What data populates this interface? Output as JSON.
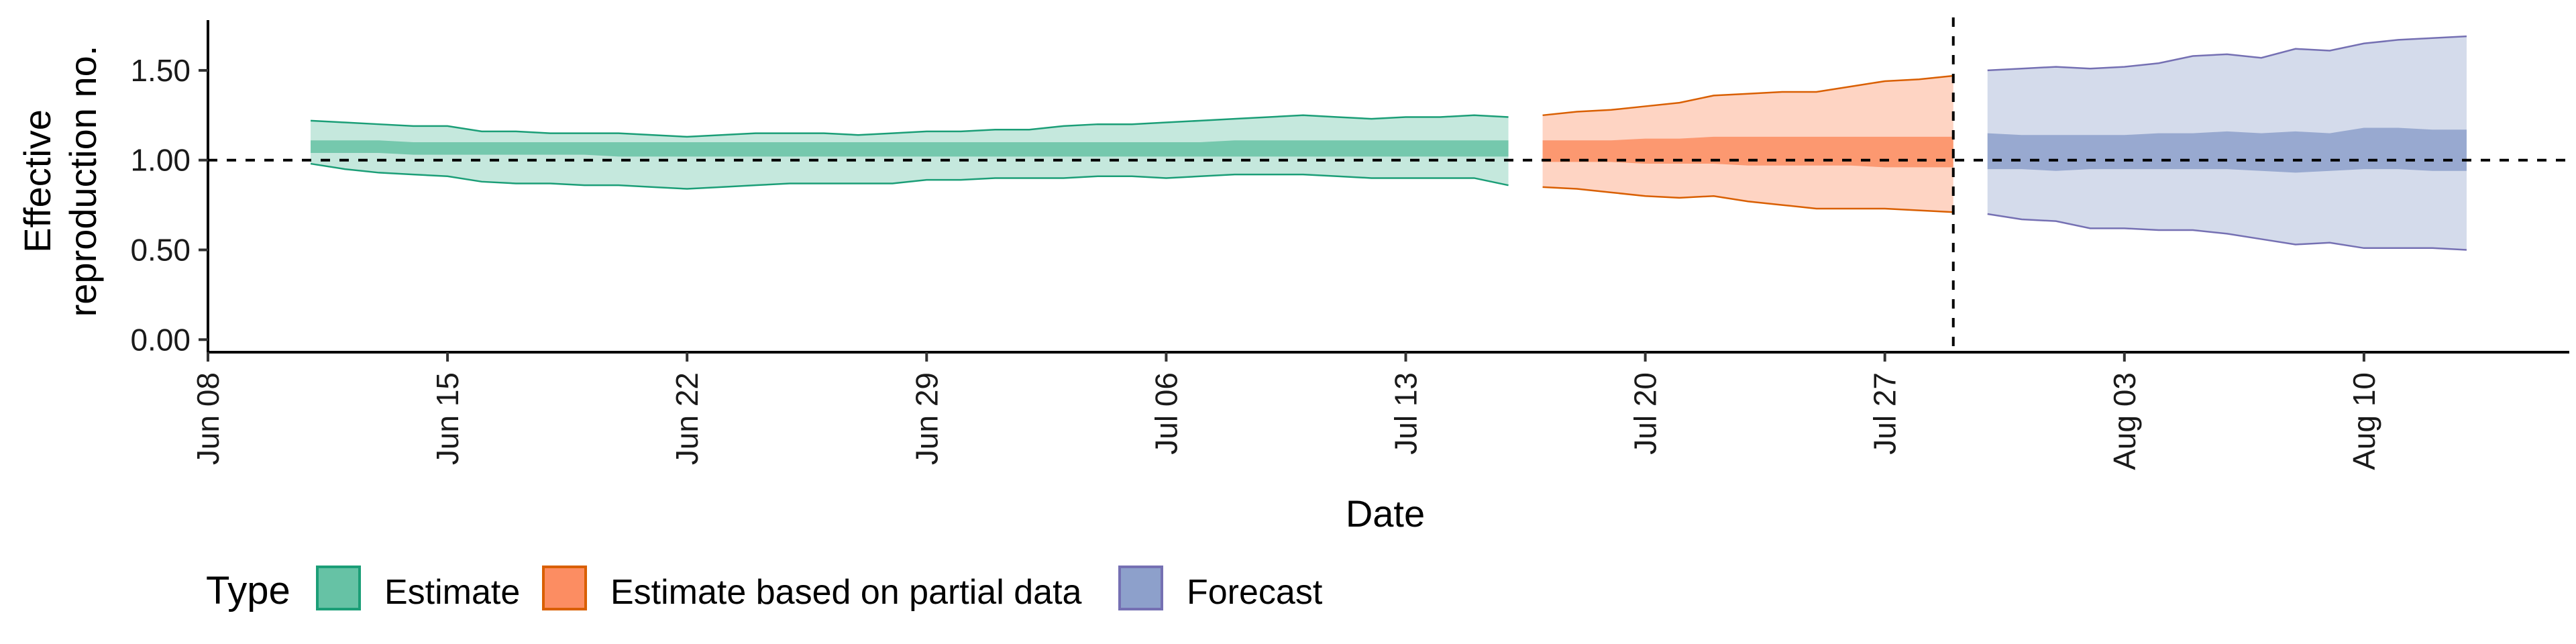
{
  "chart_data": {
    "type": "area",
    "xlabel": "Date",
    "ylabel_lines": [
      "Effective",
      "reproduction no."
    ],
    "y_ticks": [
      0.0,
      0.5,
      1.0,
      1.5
    ],
    "y_tick_labels": [
      "0.00",
      "0.50",
      "1.00",
      "1.50"
    ],
    "ylim": [
      -0.07,
      1.78
    ],
    "xlim": [
      "2020-06-08",
      "2020-08-16"
    ],
    "x_ticks": [
      "2020-06-08",
      "2020-06-15",
      "2020-06-22",
      "2020-06-29",
      "2020-07-06",
      "2020-07-13",
      "2020-07-20",
      "2020-07-27",
      "2020-08-03",
      "2020-08-10"
    ],
    "x_tick_labels": [
      "Jun 08",
      "Jun 15",
      "Jun 22",
      "Jun 29",
      "Jul 06",
      "Jul 13",
      "Jul 20",
      "Jul 27",
      "Aug 03",
      "Aug 10"
    ],
    "reference_line_y": 1.0,
    "reference_line_x": "2020-07-29",
    "grid": false,
    "legend": {
      "title": "Type",
      "position": "bottom",
      "entries": [
        "Estimate",
        "Estimate based on partial data",
        "Forecast"
      ]
    },
    "series": [
      {
        "name": "Estimate",
        "fill": "#66c2a5",
        "line": "#1b9e77",
        "x": [
          "2020-06-11",
          "2020-06-12",
          "2020-06-13",
          "2020-06-14",
          "2020-06-15",
          "2020-06-16",
          "2020-06-17",
          "2020-06-18",
          "2020-06-19",
          "2020-06-20",
          "2020-06-21",
          "2020-06-22",
          "2020-06-23",
          "2020-06-24",
          "2020-06-25",
          "2020-06-26",
          "2020-06-27",
          "2020-06-28",
          "2020-06-29",
          "2020-06-30",
          "2020-07-01",
          "2020-07-02",
          "2020-07-03",
          "2020-07-04",
          "2020-07-05",
          "2020-07-06",
          "2020-07-07",
          "2020-07-08",
          "2020-07-09",
          "2020-07-10",
          "2020-07-11",
          "2020-07-12",
          "2020-07-13",
          "2020-07-14",
          "2020-07-15",
          "2020-07-16"
        ],
        "lower90": [
          0.98,
          0.95,
          0.93,
          0.92,
          0.91,
          0.88,
          0.87,
          0.87,
          0.86,
          0.86,
          0.85,
          0.84,
          0.85,
          0.86,
          0.87,
          0.87,
          0.87,
          0.87,
          0.89,
          0.89,
          0.9,
          0.9,
          0.9,
          0.91,
          0.91,
          0.9,
          0.91,
          0.92,
          0.92,
          0.92,
          0.91,
          0.9,
          0.9,
          0.9,
          0.9,
          0.86
        ],
        "upper90": [
          1.22,
          1.21,
          1.2,
          1.19,
          1.19,
          1.16,
          1.16,
          1.15,
          1.15,
          1.15,
          1.14,
          1.13,
          1.14,
          1.15,
          1.15,
          1.15,
          1.14,
          1.15,
          1.16,
          1.16,
          1.17,
          1.17,
          1.19,
          1.2,
          1.2,
          1.21,
          1.22,
          1.23,
          1.24,
          1.25,
          1.24,
          1.23,
          1.24,
          1.24,
          1.25,
          1.24
        ],
        "lower50": [
          1.04,
          1.04,
          1.04,
          1.03,
          1.03,
          1.03,
          1.03,
          1.03,
          1.03,
          1.02,
          1.02,
          1.02,
          1.02,
          1.02,
          1.02,
          1.02,
          1.02,
          1.02,
          1.02,
          1.02,
          1.02,
          1.02,
          1.02,
          1.02,
          1.02,
          1.02,
          1.02,
          1.02,
          1.02,
          1.02,
          1.02,
          1.02,
          1.02,
          1.02,
          1.02,
          1.02
        ],
        "upper50": [
          1.11,
          1.11,
          1.11,
          1.1,
          1.1,
          1.1,
          1.1,
          1.1,
          1.1,
          1.1,
          1.1,
          1.1,
          1.1,
          1.1,
          1.1,
          1.1,
          1.1,
          1.1,
          1.1,
          1.1,
          1.1,
          1.1,
          1.1,
          1.1,
          1.1,
          1.1,
          1.1,
          1.11,
          1.11,
          1.11,
          1.11,
          1.11,
          1.11,
          1.11,
          1.11,
          1.11
        ]
      },
      {
        "name": "Estimate based on partial data",
        "fill": "#fc8d62",
        "line": "#d95f02",
        "x": [
          "2020-07-17",
          "2020-07-18",
          "2020-07-19",
          "2020-07-20",
          "2020-07-21",
          "2020-07-22",
          "2020-07-23",
          "2020-07-24",
          "2020-07-25",
          "2020-07-26",
          "2020-07-27",
          "2020-07-28",
          "2020-07-29"
        ],
        "lower90": [
          0.85,
          0.84,
          0.82,
          0.8,
          0.79,
          0.8,
          0.77,
          0.75,
          0.73,
          0.73,
          0.73,
          0.72,
          0.71
        ],
        "upper90": [
          1.25,
          1.27,
          1.28,
          1.3,
          1.32,
          1.36,
          1.37,
          1.38,
          1.38,
          1.41,
          1.44,
          1.45,
          1.47
        ],
        "lower50": [
          0.99,
          0.99,
          0.99,
          0.98,
          0.98,
          0.98,
          0.97,
          0.97,
          0.97,
          0.97,
          0.96,
          0.96,
          0.96
        ],
        "upper50": [
          1.11,
          1.11,
          1.11,
          1.12,
          1.12,
          1.13,
          1.13,
          1.13,
          1.13,
          1.13,
          1.13,
          1.13,
          1.13
        ]
      },
      {
        "name": "Forecast",
        "fill": "#8da0cb",
        "line": "#7570b3",
        "x": [
          "2020-07-30",
          "2020-07-31",
          "2020-08-01",
          "2020-08-02",
          "2020-08-03",
          "2020-08-04",
          "2020-08-05",
          "2020-08-06",
          "2020-08-07",
          "2020-08-08",
          "2020-08-09",
          "2020-08-10",
          "2020-08-11",
          "2020-08-12",
          "2020-08-13"
        ],
        "lower90": [
          0.7,
          0.67,
          0.66,
          0.62,
          0.62,
          0.61,
          0.61,
          0.59,
          0.56,
          0.53,
          0.54,
          0.51,
          0.51,
          0.51,
          0.5
        ],
        "upper90": [
          1.5,
          1.51,
          1.52,
          1.51,
          1.52,
          1.54,
          1.58,
          1.59,
          1.57,
          1.62,
          1.61,
          1.65,
          1.67,
          1.68,
          1.69
        ],
        "lower50": [
          0.95,
          0.95,
          0.94,
          0.95,
          0.95,
          0.95,
          0.95,
          0.95,
          0.94,
          0.93,
          0.94,
          0.95,
          0.95,
          0.94,
          0.94
        ],
        "upper50": [
          1.15,
          1.14,
          1.14,
          1.14,
          1.14,
          1.15,
          1.15,
          1.16,
          1.15,
          1.16,
          1.15,
          1.18,
          1.18,
          1.17,
          1.17
        ]
      }
    ]
  }
}
